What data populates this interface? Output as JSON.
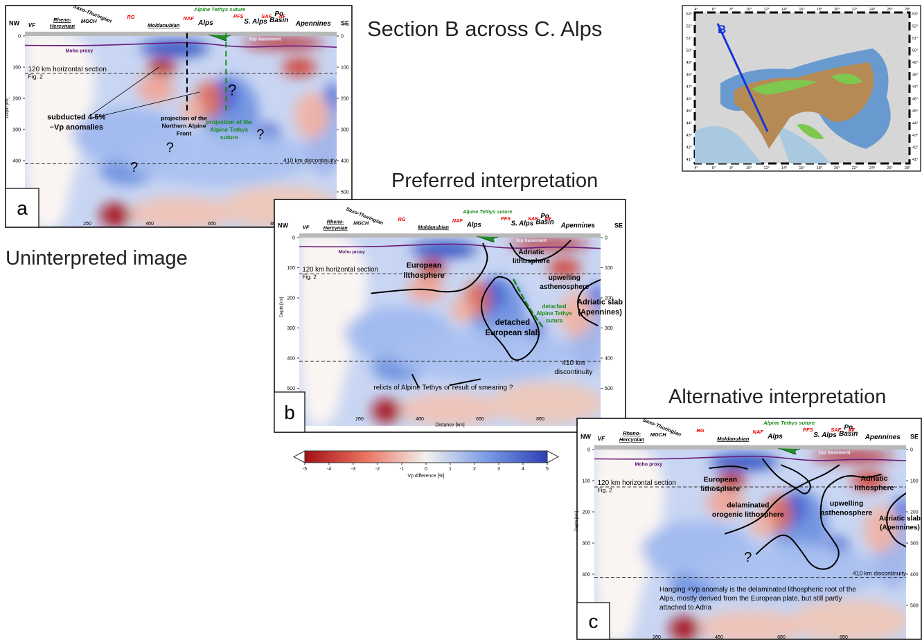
{
  "title": "Section B across C. Alps",
  "colorbar": {
    "ticks": [
      -5,
      -4,
      -3,
      -2,
      -1,
      0,
      1,
      2,
      3,
      4,
      5
    ],
    "label": "Vp difference [%]"
  },
  "map": {
    "section_label": "B",
    "lat_labels": [
      "53°",
      "52°",
      "51°",
      "50°",
      "49°",
      "48°",
      "47°",
      "46°",
      "45°",
      "44°",
      "43°",
      "42°",
      "41°"
    ],
    "lon_labels": [
      "4°",
      "6°",
      "8°",
      "10°",
      "12°",
      "14°",
      "16°",
      "18°",
      "20°",
      "22°",
      "24°",
      "26°",
      "28°"
    ]
  },
  "section": {
    "nw": "NW",
    "se": "SE",
    "top_labels": [
      [
        "VF"
      ],
      [
        "Rheno-",
        "Hercynian"
      ],
      [
        "Saxo-Thuringian"
      ],
      [
        "MGCH"
      ],
      [
        "RG"
      ],
      [
        "Moldanubian"
      ],
      [
        "NAF"
      ],
      [
        "Alps"
      ],
      [
        "Alpine Tethys suture"
      ],
      [
        "PFS"
      ],
      [
        "S. Alps"
      ],
      [
        "SAF"
      ],
      [
        "Po",
        "Basin"
      ],
      [
        "AF"
      ],
      [
        "Apennines"
      ]
    ],
    "moho": "Moho proxy",
    "basement": "top basement",
    "horizontal": "120 km horizontal section",
    "fig": "Fig. 2",
    "depth_label": "Depth [km]",
    "distance_label": "Distance [km]",
    "depth_ticks": [
      0,
      100,
      200,
      300,
      400,
      500
    ],
    "distance_ticks": [
      200,
      400,
      600,
      800
    ]
  },
  "panels": [
    {
      "label": "a",
      "caption": "Uninterpreted image",
      "annotations": [
        [
          "subducted 4-5%",
          "−Vp anomalies"
        ],
        [
          "projection of the",
          "Northern Alpine",
          "Front"
        ],
        [
          "projection of the",
          "Alpine Tethys",
          "suture"
        ],
        [
          "?"
        ],
        [
          "?"
        ],
        [
          "?"
        ],
        [
          "?"
        ],
        [
          "410 km discontinuity"
        ]
      ]
    },
    {
      "label": "b",
      "caption": "Preferred interpretation",
      "annotations": [
        [
          "European",
          "lithosphere"
        ],
        [
          "Adriatic",
          "lithosphere"
        ],
        [
          "upwelling",
          "asthenosphere"
        ],
        [
          "detached",
          "Alpine Tethys",
          "suture"
        ],
        [
          "Adriatic slab",
          "(Apennines)"
        ],
        [
          "detached",
          "European slab"
        ],
        [
          "410 km",
          "discontinuity"
        ],
        [
          "relicts of Alpine Tethys or result of smearing ?"
        ]
      ]
    },
    {
      "label": "c",
      "caption": "Alternative interpretation",
      "annotations": [
        [
          "European",
          "lithosphere"
        ],
        [
          "Adriatic",
          "lithosphere"
        ],
        [
          "delaminated",
          "orogenic lithosphere"
        ],
        [
          "upwelling",
          "asthenosphere"
        ],
        [
          "Adriatic slab",
          "(Apennines)"
        ],
        [
          "?"
        ],
        [
          "410 km discontinuity"
        ],
        [
          "Hanging +Vp anomaly is the delaminated lithospheric root of the",
          "Alps, mostly derived from the European plate, but still partly",
          "attached to Adria"
        ]
      ]
    }
  ]
}
